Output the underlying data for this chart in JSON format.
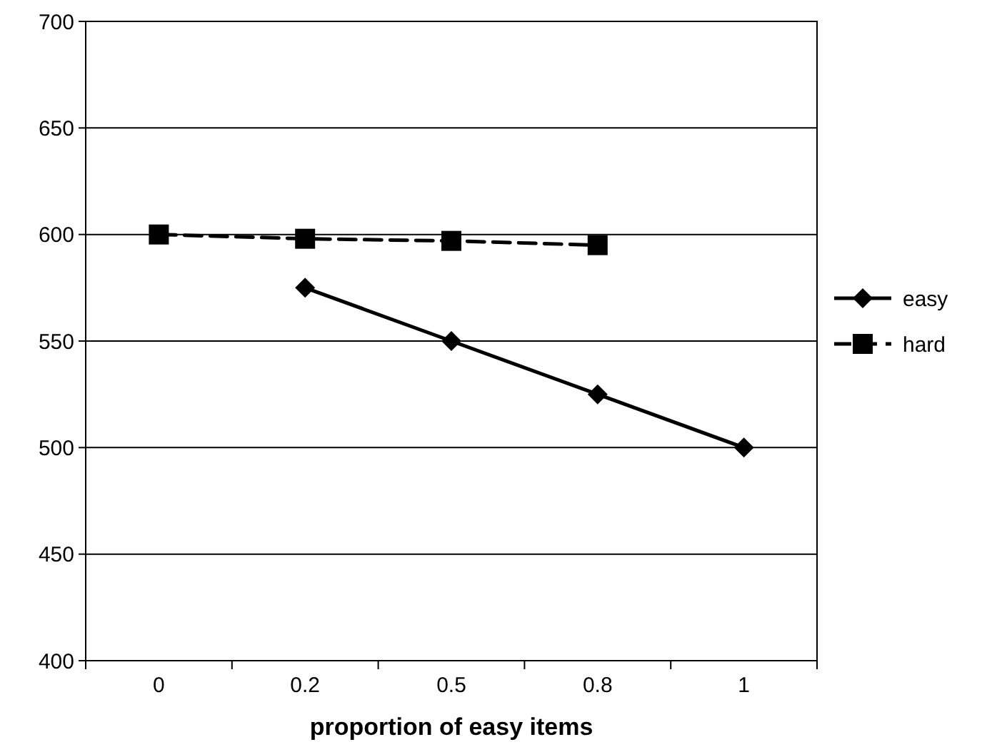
{
  "chart_data": {
    "type": "line",
    "xlabel": "proportion of easy items",
    "categories": [
      "0",
      "0.2",
      "0.5",
      "0.8",
      "1"
    ],
    "series": [
      {
        "name": "easy",
        "color": "#000000",
        "values": [
          null,
          575,
          550,
          525,
          500
        ],
        "marker": "diamond",
        "line_style": "solid"
      },
      {
        "name": "hard",
        "color": "#000000",
        "values": [
          600,
          598,
          597,
          595,
          null
        ],
        "marker": "square",
        "line_style": "dashed"
      }
    ],
    "ylim": [
      400,
      700
    ],
    "yticks": [
      400,
      450,
      500,
      550,
      600,
      650,
      700
    ],
    "grid": "y",
    "legend": "right"
  }
}
